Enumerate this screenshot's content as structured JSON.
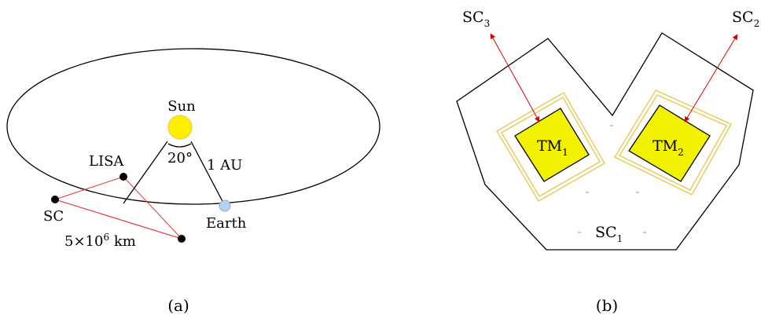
{
  "panel_a": {
    "caption": "(a)",
    "sun_label": "Sun",
    "angle_label": "20°",
    "distance_label": "1 AU",
    "lisa_label": "LISA",
    "sc_label": "SC",
    "earth_label": "Earth",
    "arm_length": {
      "base": "5×10",
      "exp": "6",
      "unit": " km"
    },
    "colors": {
      "sun": "#ffee00",
      "earth": "#b8cfee",
      "triangle": "#e23a3a"
    }
  },
  "panel_b": {
    "caption": "(b)",
    "sc3": {
      "base": "SC",
      "sub": "3"
    },
    "sc2": {
      "base": "SC",
      "sub": "2"
    },
    "sc1": {
      "base": "SC",
      "sub": "1"
    },
    "tm1": {
      "base": "TM",
      "sub": "1"
    },
    "tm2": {
      "base": "TM",
      "sub": "2"
    },
    "colors": {
      "test_mass": "#f2f200",
      "housing": "#e8c64a",
      "laser": "#e00000"
    }
  }
}
